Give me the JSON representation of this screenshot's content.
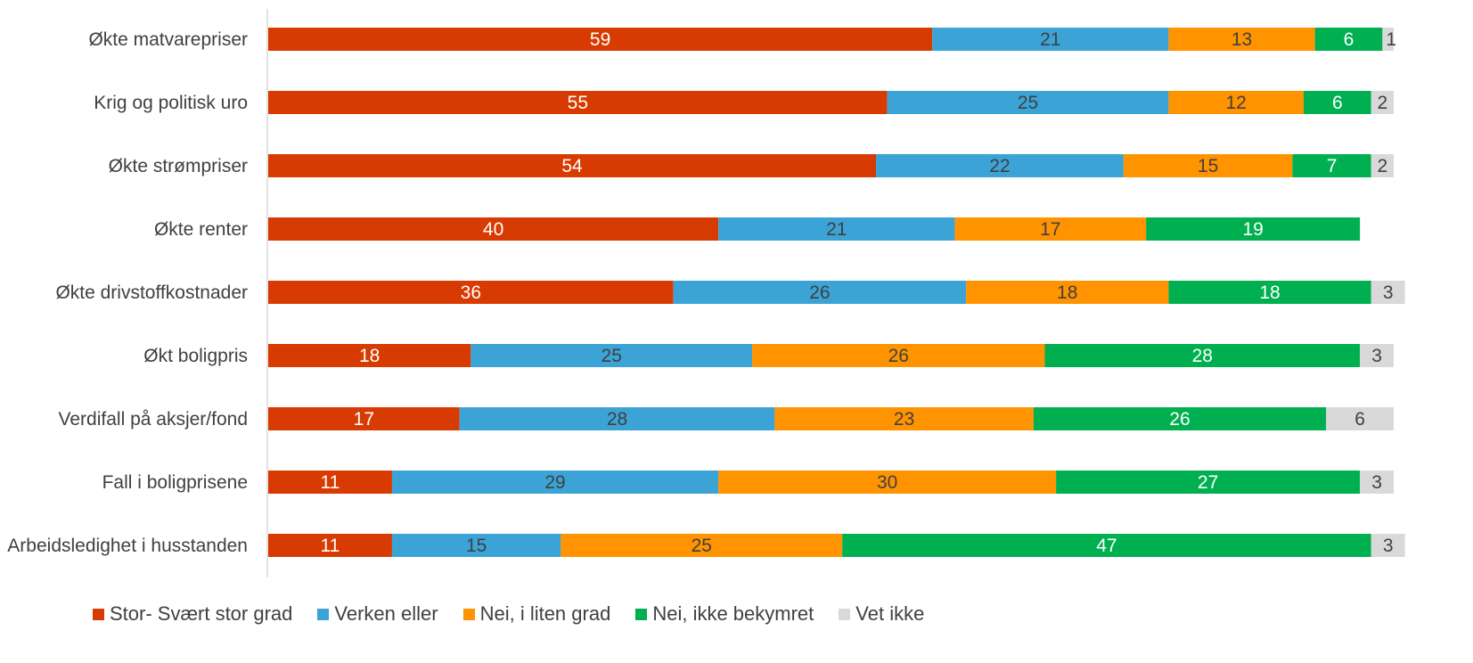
{
  "chart_data": {
    "type": "bar",
    "orientation": "horizontal",
    "stacked": true,
    "categories": [
      "Økte matvarepriser",
      "Krig og politisk uro",
      "Økte strømpriser",
      "Økte renter",
      "Økte drivstoffkostnader",
      "Økt boligpris",
      "Verdifall på aksjer/fond",
      "Fall i boligprisene",
      "Arbeidsledighet i husstanden"
    ],
    "series": [
      {
        "name": "Stor- Svært stor grad",
        "color": "#d83b01",
        "label_color": "#ffffff",
        "values": [
          59,
          55,
          54,
          40,
          36,
          18,
          17,
          11,
          11
        ]
      },
      {
        "name": "Verken eller",
        "color": "#3ba3d6",
        "label_color": "#404040",
        "values": [
          21,
          25,
          22,
          21,
          26,
          25,
          28,
          29,
          15
        ]
      },
      {
        "name": "Nei, i liten grad",
        "color": "#ff9300",
        "label_color": "#404040",
        "values": [
          13,
          12,
          15,
          17,
          18,
          26,
          23,
          30,
          25
        ]
      },
      {
        "name": "Nei, ikke bekymret",
        "color": "#00b050",
        "label_color": "#ffffff",
        "values": [
          6,
          6,
          7,
          19,
          18,
          28,
          26,
          27,
          47
        ]
      },
      {
        "name": "Vet ikke",
        "color": "#d9d9d9",
        "label_color": "#404040",
        "values": [
          1,
          2,
          2,
          null,
          3,
          3,
          6,
          3,
          3
        ]
      }
    ],
    "legend_position": "bottom",
    "grid": false
  }
}
